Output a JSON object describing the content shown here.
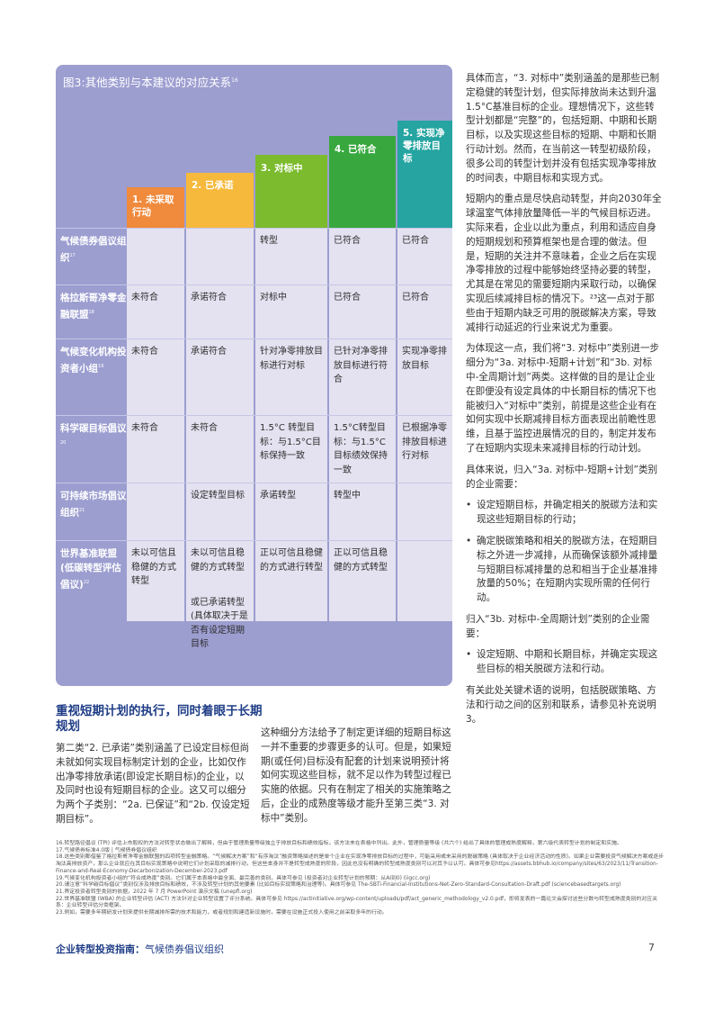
{
  "figure": {
    "title": "图3:其他类别与本建议的对应关系",
    "title_ref": "16",
    "stages": [
      {
        "label": "1. 未采取行动",
        "color": "#f08a3c"
      },
      {
        "label": "2. 已承诺",
        "color": "#f6b93b"
      },
      {
        "label": "3. 对标中",
        "color": "#7bbb2d"
      },
      {
        "label": "4. 已符合",
        "color": "#38a83e"
      },
      {
        "label": "5. 实现净零排放目标",
        "color": "#25a4a1"
      }
    ],
    "rows": [
      {
        "name": "气候债券倡议组织",
        "ref": "17",
        "cells": [
          "",
          "",
          "转型",
          "已符合",
          "已符合"
        ]
      },
      {
        "name": "格拉斯哥净零金融联盟",
        "ref": "18",
        "cells": [
          "未符合",
          "承诺符合",
          "对标中",
          "已符合",
          "已符合"
        ]
      },
      {
        "name": "气候变化机构投资者小组",
        "ref": "19",
        "cells": [
          "未符合",
          "承诺符合",
          "针对净零排放目标进行对标",
          "已针对净零排放目标进行符合",
          "实现净零排放目标"
        ]
      },
      {
        "name": "科学碳目标倡议",
        "ref": "20",
        "cells": [
          "未符合",
          "未符合",
          "1.5°C 转型目标：与1.5°C目标保持一致",
          "1.5°C转型目标：与1.5°C目标绩效保持一致",
          "已根据净零排放目标进行对标"
        ]
      },
      {
        "name": "可持续市场倡议组织",
        "ref": "21",
        "cells": [
          "",
          "设定转型目标",
          "承诺转型",
          "转型中",
          ""
        ]
      },
      {
        "name": "世界基准联盟(低碳转型评估倡议)",
        "ref": "22",
        "cells": [
          "未以可信且稳健的方式转型",
          "未以可信且稳健的方式转型",
          "正以可信且稳健的方式进行转型",
          "正以可信且稳健的方式转型",
          ""
        ],
        "extra": "或已承诺转型(具体取决于是否有设定短期目标"
      }
    ]
  },
  "right_column": {
    "p1": "具体而言，“3. 对标中”类别涵盖的是那些已制定稳健的转型计划，但实际排放尚未达到升温1.5°C基准目标的企业。理想情况下，这些转型计划都是“完整”的，包括短期、中期和长期目标，以及实现这些目标的短期、中期和长期行动计划。然而，在当前这一转型初级阶段，很多公司的转型计划并没有包括实现净零排放的时间表，中期目标和实现方式。",
    "p2": "短期内的重点是尽快启动转型，并向2030年全球温室气体排放量降低一半的气候目标迈进。实际来看，企业以此为重点，利用和适应自身的短期规划和预算框架也是合理的做法。但是，短期的关注并不意味着，企业之后在实现净零排放的过程中能够始终坚持必要的转型，尤其是在常见的需要短期内采取行动，以确保实现后续减排目标的情况下。²³这一点对于那些由于短期内缺乏可用的脱碳解决方案，导致减排行动延迟的行业来说尤为重要。",
    "p3": "为体现这一点，我们将“3. 对标中”类别进一步细分为“3a. 对标中-短期+计划”和“3b. 对标中-全周期计划”两类。这样做的目的是让企业在即便没有设定具体的中长期目标的情况下也能被归入“对标中”类别，前提是这些企业有在如何实现中长期减排目标方面表现出前瞻性思维，且基于监控进展情况的目的，制定并发布了在短期内实现未来减排目标的行动计划。",
    "p4": "具体来说，归入“3a. 对标中-短期+计划”类别的企业需要：",
    "b1": "设定短期目标，并确定相关的脱碳方法和实现这些短期目标的行动；",
    "b2": "确定脱碳策略和相关的脱碳方法，在短期目标之外进一步减排，从而确保该额外减排量与短期目标减排量的总和相当于企业基准排放量的50%；在短期内实现所需的任何行动。",
    "p5": "归入“3b. 对标中-全周期计划”类别的企业需要：",
    "b3": "设定短期、中期和长期目标，并确定实现这些目标的相关脱碳方法和行动。",
    "p6": "有关此处关键术语的说明，包括脱碳策略、方法和行动之间的区别和联系，请参见补充说明3。"
  },
  "bottom": {
    "heading": "重视短期计划的执行，同时着眼于长期规划",
    "col1": "第二类“2. 已承诺”类别涵盖了已设定目标但尚未就如何实现目标制定计划的企业，比如仅作出净零排放承诺(即设定长期目标)的企业，以及同时也设有短期目标的企业。这又可以细分为两个子类别：“2a. 已保证”和“2b. 仅设定短期目标”。",
    "col2": "这种细分方法给予了制定更详细的短期目标这一并不重要的步骤更多的认可。但是，如果短期(或任何)目标没有配套的计划来说明预计将如何实现这些目标，就不足以作为转型过程已实施的依据。只有在制定了相关的实施策略之后，企业的成熟度等级才能升至第三类“3. 对标中”类别。"
  },
  "footnotes": [
    "16.转型路径倡议 (TPI) 评估上市股权的方法对转型状态做出了解释，但由于管理质量等级独立于排放目标和绩效指标，该方法未在表格中列出。此外，管理质量等级 (共六个) 给出了具体的管理成熟度解释，第六级代表转型计划的制定和实施。",
    "17.气候债券标准4.0版 | 气候债券倡议组织",
    "18.这些类别都借鉴了格拉斯哥净零金融联盟的四项转型金融策略。“气候解决方案”和“有序淘汰”融资策略描述的是单个企业在实现净零排放目标的过程中，可能采用或未采用的脱碳策略 (具体取决于企业经济活动的性质)。如果企业需要投资气候解决方案或逐步淘汰高排放资产，那么企业就应在其目标实现策略中说明它们计划采取的减排行动，但这些本身并不是转型成熟度的阶段，因此也没有明确的转型成熟度类别可以对其予以认可。具体可参见https://assets.bbhub.io/company/sites/63/2023/11/Transition-Finance-and-Real-Economy-Decarbonization-December-2023.pdf",
    "19.气候变化机构投资者小组的“符合成熟度”类别。它们属于本表格中最全面、最完善的类别。具体可参见 (投资者对企业转型计划的预期：从AI到0) (iigcc.org)",
    "20.请注意“科学碳目标倡议”类别仅涉及排放目标和绩效，不涉及转型计划的其他要素 (比如目标实现策略和治理等)。具体可参见 The-SBTi-Financial-Institutions-Net-Zero-Standard-Consultation-Draft.pdf (sciencebasedtargets.org)",
    "21.界定投资者转型类别的依据，2022 年 7 月 PowerPoint 演示文稿 (unepfi.org)",
    "22.世界基准联盟 (WBA) 的企业转型评估 (ACT) 方法针对企业转型设置了评分系统。具体可参见 https://actinitiative.org/wp-content/uploads/pdf/act_generic_methodology_v2.0.pdf，即将发表的一篇论文会探讨这些分数与转型成熟度类别的对应关系：企业转型评估分类框架。",
    "23.例如，需要多年期研发计划来提供长期减排所需的技术和能力，或者规划和建造新设施时，需要在设施正式投入使用之前采取多年的行动。"
  ],
  "footer": {
    "left_bold": "企业转型投资指南：",
    "left_rest": "气候债券倡议组织",
    "page": "7"
  },
  "colors": {
    "figure_bg": "#9c9ed0",
    "cell_bg": "#e4e2f0",
    "heading": "#1f3d87"
  }
}
